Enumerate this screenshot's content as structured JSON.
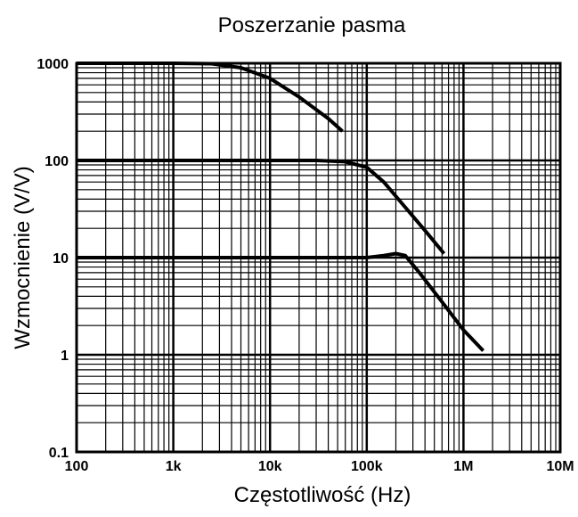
{
  "chart_data": {
    "type": "line",
    "title": "Poszerzanie pasma",
    "xlabel": "Częstotliwość (Hz)",
    "ylabel": "Wzmocnienie (V/V)",
    "x_scale": "log",
    "y_scale": "log",
    "xlim": [
      100,
      10000000
    ],
    "ylim": [
      0.1,
      1000
    ],
    "grid": true,
    "x_ticks": [
      "100",
      "1k",
      "10k",
      "100k",
      "1M",
      "10M"
    ],
    "y_ticks": [
      "0.1",
      "1",
      "10",
      "100",
      "1000"
    ],
    "series": [
      {
        "x": [
          100,
          1000,
          2500,
          5000,
          10000,
          20000,
          40000,
          56000
        ],
        "y": [
          1000,
          1000,
          990,
          900,
          700,
          450,
          270,
          200
        ]
      },
      {
        "x": [
          100,
          1000,
          10000,
          30000,
          60000,
          100000,
          150000,
          250000,
          400000,
          630000
        ],
        "y": [
          100,
          100,
          100,
          100,
          97,
          85,
          60,
          33,
          19,
          11
        ]
      },
      {
        "x": [
          100,
          10000,
          100000,
          150000,
          200000,
          250000,
          350000,
          600000,
          1000000,
          1600000
        ],
        "y": [
          10,
          10,
          10,
          10.5,
          11,
          10.5,
          7,
          3.5,
          1.8,
          1.1
        ]
      }
    ]
  }
}
